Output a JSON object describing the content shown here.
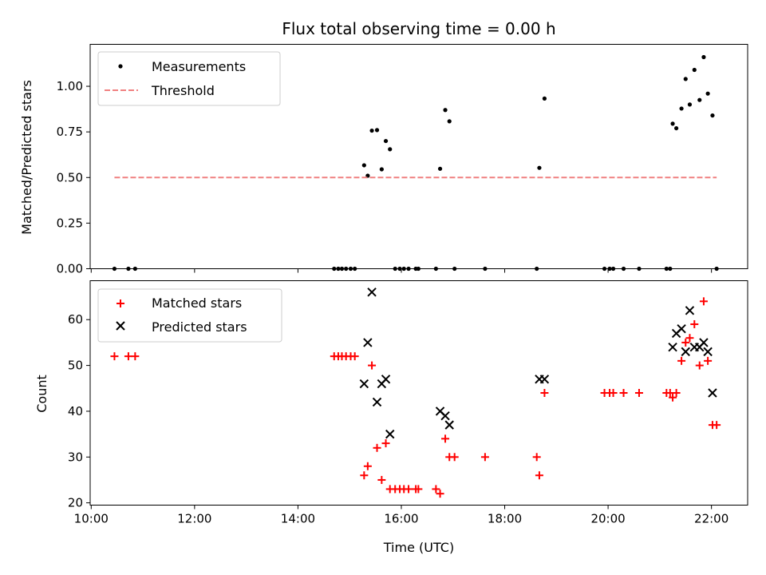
{
  "chart_data": [
    {
      "type": "scatter",
      "title": "Flux total observing time = 0.00 h",
      "ylabel": "Matched/Predicted stars",
      "xlim_hours": [
        9.98,
        22.7
      ],
      "ylim": [
        0,
        1.23
      ],
      "x_ticks": [
        10,
        12,
        14,
        16,
        18,
        20,
        22
      ],
      "y_ticks": [
        0.0,
        0.25,
        0.5,
        0.75,
        1.0
      ],
      "y_tick_labels": [
        "0.00",
        "0.25",
        "0.50",
        "0.75",
        "1.00"
      ],
      "legend_position": "upper-left",
      "series": [
        {
          "name": "Measurements",
          "kind": "points",
          "color": "#000000",
          "points": [
            [
              10.45,
              0.0
            ],
            [
              10.72,
              0.0
            ],
            [
              10.85,
              0.0
            ],
            [
              14.7,
              0.0
            ],
            [
              14.78,
              0.0
            ],
            [
              14.85,
              0.0
            ],
            [
              14.93,
              0.0
            ],
            [
              15.02,
              0.0
            ],
            [
              15.1,
              0.0
            ],
            [
              15.28,
              0.567
            ],
            [
              15.35,
              0.51
            ],
            [
              15.43,
              0.757
            ],
            [
              15.53,
              0.76
            ],
            [
              15.62,
              0.545
            ],
            [
              15.7,
              0.7
            ],
            [
              15.78,
              0.655
            ],
            [
              15.88,
              0.0
            ],
            [
              15.97,
              0.0
            ],
            [
              16.05,
              0.0
            ],
            [
              16.14,
              0.0
            ],
            [
              16.28,
              0.0
            ],
            [
              16.33,
              0.0
            ],
            [
              16.67,
              0.0
            ],
            [
              16.75,
              0.548
            ],
            [
              16.85,
              0.87
            ],
            [
              16.93,
              0.808
            ],
            [
              17.03,
              0.0
            ],
            [
              17.62,
              0.0
            ],
            [
              18.62,
              0.0
            ],
            [
              18.67,
              0.553
            ],
            [
              18.77,
              0.933
            ],
            [
              19.93,
              0.0
            ],
            [
              20.03,
              0.0
            ],
            [
              20.1,
              0.0
            ],
            [
              20.3,
              0.0
            ],
            [
              20.6,
              0.0
            ],
            [
              21.13,
              0.0
            ],
            [
              21.2,
              0.0
            ],
            [
              21.25,
              0.795
            ],
            [
              21.32,
              0.77
            ],
            [
              21.42,
              0.878
            ],
            [
              21.5,
              1.04
            ],
            [
              21.58,
              0.9
            ],
            [
              21.67,
              1.09
            ],
            [
              21.77,
              0.925
            ],
            [
              21.85,
              1.16
            ],
            [
              21.93,
              0.96
            ],
            [
              22.02,
              0.84
            ],
            [
              22.1,
              0.0
            ]
          ]
        },
        {
          "name": "Threshold",
          "kind": "dashed-line",
          "color": "#f08080",
          "x": [
            10.45,
            22.1
          ],
          "y": [
            0.5,
            0.5
          ]
        }
      ]
    },
    {
      "type": "scatter",
      "xlabel": "Time (UTC)",
      "ylabel": "Count",
      "xlim_hours": [
        9.98,
        22.7
      ],
      "ylim": [
        19.5,
        68.5
      ],
      "x_ticks": [
        10,
        12,
        14,
        16,
        18,
        20,
        22
      ],
      "x_tick_labels": [
        "10:00",
        "12:00",
        "14:00",
        "16:00",
        "18:00",
        "20:00",
        "22:00"
      ],
      "y_ticks": [
        20,
        30,
        40,
        50,
        60
      ],
      "y_tick_labels": [
        "20",
        "30",
        "40",
        "50",
        "60"
      ],
      "legend_position": "upper-left",
      "series": [
        {
          "name": "Matched stars",
          "kind": "plus",
          "color": "#ff0000",
          "points": [
            [
              10.45,
              52
            ],
            [
              10.72,
              52
            ],
            [
              10.85,
              52
            ],
            [
              14.7,
              52
            ],
            [
              14.78,
              52
            ],
            [
              14.85,
              52
            ],
            [
              14.93,
              52
            ],
            [
              15.02,
              52
            ],
            [
              15.1,
              52
            ],
            [
              15.28,
              26
            ],
            [
              15.35,
              28
            ],
            [
              15.43,
              50
            ],
            [
              15.53,
              32
            ],
            [
              15.62,
              25
            ],
            [
              15.7,
              33
            ],
            [
              15.78,
              23
            ],
            [
              15.88,
              23
            ],
            [
              15.97,
              23
            ],
            [
              16.05,
              23
            ],
            [
              16.14,
              23
            ],
            [
              16.28,
              23
            ],
            [
              16.33,
              23
            ],
            [
              16.67,
              23
            ],
            [
              16.75,
              22
            ],
            [
              16.85,
              34
            ],
            [
              16.93,
              30
            ],
            [
              17.03,
              30
            ],
            [
              17.62,
              30
            ],
            [
              18.62,
              30
            ],
            [
              18.67,
              26
            ],
            [
              18.77,
              44
            ],
            [
              19.93,
              44
            ],
            [
              20.03,
              44
            ],
            [
              20.1,
              44
            ],
            [
              20.3,
              44
            ],
            [
              20.6,
              44
            ],
            [
              21.13,
              44
            ],
            [
              21.2,
              44
            ],
            [
              21.25,
              43
            ],
            [
              21.32,
              44
            ],
            [
              21.42,
              51
            ],
            [
              21.5,
              55
            ],
            [
              21.58,
              56
            ],
            [
              21.67,
              59
            ],
            [
              21.77,
              50
            ],
            [
              21.85,
              64
            ],
            [
              21.93,
              51
            ],
            [
              22.02,
              37
            ],
            [
              22.1,
              37
            ]
          ]
        },
        {
          "name": "Predicted stars",
          "kind": "x",
          "color": "#000000",
          "points": [
            [
              15.28,
              46
            ],
            [
              15.35,
              55
            ],
            [
              15.43,
              66
            ],
            [
              15.53,
              42
            ],
            [
              15.62,
              46
            ],
            [
              15.7,
              47
            ],
            [
              15.78,
              35
            ],
            [
              16.75,
              40
            ],
            [
              16.85,
              39
            ],
            [
              16.93,
              37
            ],
            [
              18.67,
              47
            ],
            [
              18.77,
              47
            ],
            [
              21.25,
              54
            ],
            [
              21.32,
              57
            ],
            [
              21.42,
              58
            ],
            [
              21.5,
              53
            ],
            [
              21.58,
              62
            ],
            [
              21.67,
              54
            ],
            [
              21.77,
              54
            ],
            [
              21.85,
              55
            ],
            [
              21.93,
              53
            ],
            [
              22.02,
              44
            ]
          ]
        }
      ]
    }
  ]
}
